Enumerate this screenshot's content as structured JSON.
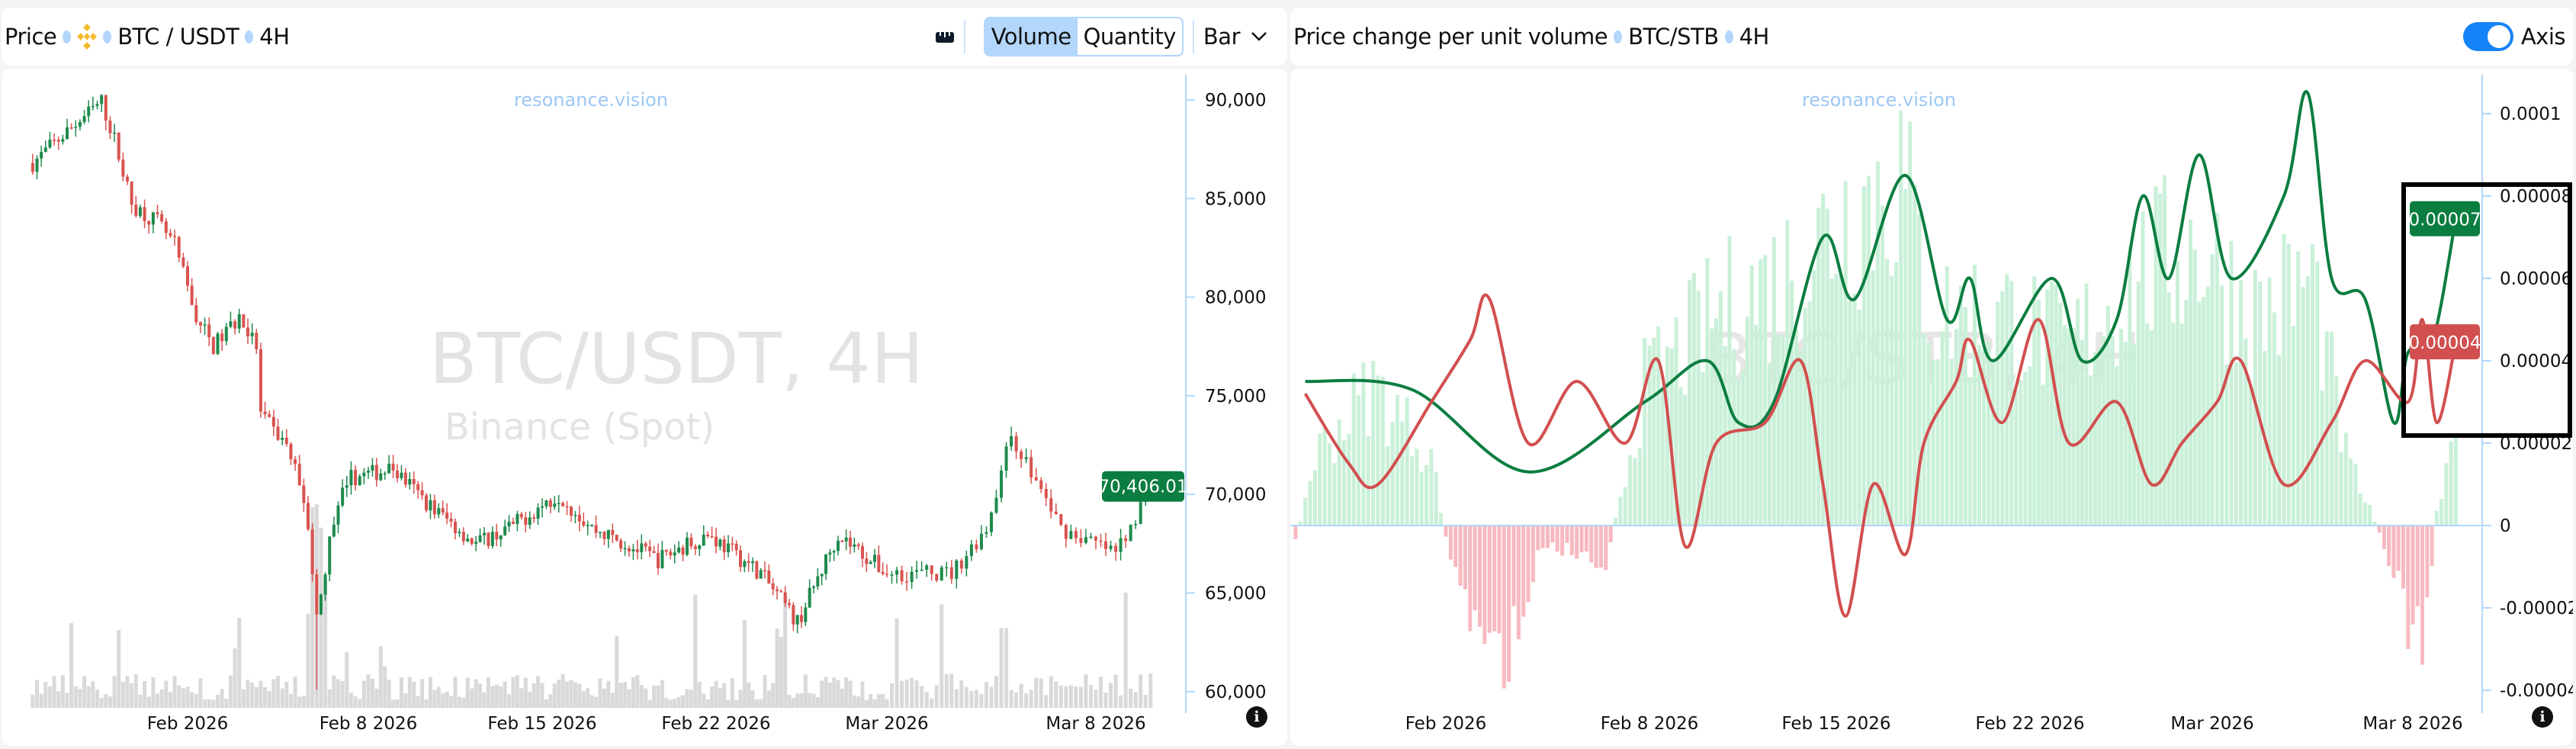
{
  "left": {
    "header": {
      "title": "Price",
      "exchange_icon": "binance-logo-icon",
      "pair": "BTC / USDT",
      "interval": "4H",
      "ruler_icon": "ruler-icon",
      "volume": "Volume",
      "quantity": "Quantity",
      "volume_selected": true,
      "chart_type": "Bar"
    },
    "watermark": {
      "site": "resonance.vision",
      "main": "BTC/USDT, 4H",
      "sub": "Binance (Spot)"
    },
    "chart_data": {
      "type": "candlestick",
      "y_ticks": [
        "90,000",
        "85,000",
        "80,000",
        "75,000",
        "70,000",
        "65,000",
        "60,000"
      ],
      "y_tick_values": [
        90000,
        85000,
        80000,
        75000,
        70000,
        65000,
        60000
      ],
      "x_ticks": [
        {
          "date": "2026-02-01",
          "label": "Feb 2026"
        },
        {
          "date": "2026-02-08",
          "label": "Feb 8 2026"
        },
        {
          "date": "2026-02-15",
          "label": "Feb 15 2026"
        },
        {
          "date": "2026-02-22",
          "label": "Feb 22 2026"
        },
        {
          "date": "2026-03-01",
          "label": "Mar 2026"
        },
        {
          "date": "2026-03-08",
          "label": "Mar 8 2026"
        }
      ],
      "approx_close_path": [
        [
          "2026-01-26T00:00",
          86800
        ],
        [
          "2026-01-27T08:00",
          88400
        ],
        [
          "2026-01-28T16:00",
          89900
        ],
        [
          "2026-01-29T04:00",
          88000
        ],
        [
          "2026-01-29T20:00",
          84700
        ],
        [
          "2026-01-30T20:00",
          83800
        ],
        [
          "2026-01-31T12:00",
          82600
        ],
        [
          "2026-02-01T08:00",
          79000
        ],
        [
          "2026-02-02T00:00",
          77500
        ],
        [
          "2026-02-03T00:00",
          79000
        ],
        [
          "2026-02-03T16:00",
          77500
        ],
        [
          "2026-02-03T20:00",
          74000
        ],
        [
          "2026-02-04T20:00",
          72500
        ],
        [
          "2026-02-05T12:00",
          70000
        ],
        [
          "2026-02-06T00:00",
          63500
        ],
        [
          "2026-02-06T12:00",
          67500
        ],
        [
          "2026-02-07T04:00",
          70800
        ],
        [
          "2026-02-09T00:00",
          71300
        ],
        [
          "2026-02-10T08:00",
          69600
        ],
        [
          "2026-02-12T08:00",
          67500
        ],
        [
          "2026-02-13T16:00",
          68300
        ],
        [
          "2026-02-15T16:00",
          70000
        ],
        [
          "2026-02-17T00:00",
          68300
        ],
        [
          "2026-02-19T16:00",
          66700
        ],
        [
          "2026-02-21T16:00",
          68000
        ],
        [
          "2026-02-23T20:00",
          66000
        ],
        [
          "2026-02-25T08:00",
          63500
        ],
        [
          "2026-02-27T00:00",
          68000
        ],
        [
          "2026-03-01T00:00",
          66000
        ],
        [
          "2026-03-03T04:00",
          66000
        ],
        [
          "2026-03-04T08:00",
          68300
        ],
        [
          "2026-03-05T04:00",
          73000
        ],
        [
          "2026-03-06T20:00",
          68300
        ],
        [
          "2026-03-08T16:00",
          67000
        ],
        [
          "2026-03-09T20:00",
          70406.01
        ]
      ],
      "low_spike": {
        "date": "2026-02-06T00:00",
        "price": 60100
      },
      "last_price": "70,406.01",
      "up_color": "#1e8a4c",
      "down_color": "#d9534f",
      "volume_color": "#d9d9d9",
      "last_price_color": "#0b7d40"
    }
  },
  "right": {
    "header": {
      "title": "Price change per unit volume",
      "pair": "BTC/STB",
      "interval": "4H",
      "axis_label": "Axis",
      "axis_on": true
    },
    "watermark": {
      "site": "resonance.vision",
      "main": "BTC/STB, 4H"
    },
    "chart_data": {
      "type": "line+histogram",
      "y_ticks": [
        "0.0001",
        "0.00008",
        "0.00006",
        "0.00004",
        "0.00002",
        "0",
        "-0.00002",
        "-0.00004"
      ],
      "y_tick_values": [
        0.0001,
        8e-05,
        6e-05,
        4e-05,
        2e-05,
        0,
        -2e-05,
        -4e-05
      ],
      "x_ticks": [
        {
          "date": "2026-02-01",
          "label": "Feb 2026"
        },
        {
          "date": "2026-02-08",
          "label": "Feb 8 2026"
        },
        {
          "date": "2026-02-15",
          "label": "Feb 15 2026"
        },
        {
          "date": "2026-02-22",
          "label": "Feb 22 2026"
        },
        {
          "date": "2026-03-01",
          "label": "Mar 2026"
        },
        {
          "date": "2026-03-08",
          "label": "Mar 8 2026"
        }
      ],
      "series": [
        {
          "color": "#0b7d40",
          "last_label": "0.00007",
          "points": [
            [
              "2026-01-27T04:00",
              3.5e-05
            ],
            [
              "2026-01-30T20:00",
              3.3e-05
            ],
            [
              "2026-02-03T20:00",
              1.3e-05
            ],
            [
              "2026-02-07T20:00",
              3e-05
            ],
            [
              "2026-02-10T04:00",
              4e-05
            ],
            [
              "2026-02-11T08:00",
              2.5e-05
            ],
            [
              "2026-02-12T16:00",
              3e-05
            ],
            [
              "2026-02-14T12:00",
              7e-05
            ],
            [
              "2026-02-15T16:00",
              5.5e-05
            ],
            [
              "2026-02-17T12:00",
              8.5e-05
            ],
            [
              "2026-02-19T00:00",
              5e-05
            ],
            [
              "2026-02-19T20:00",
              6e-05
            ],
            [
              "2026-02-20T16:00",
              4e-05
            ],
            [
              "2026-02-22T20:00",
              6e-05
            ],
            [
              "2026-02-24T00:00",
              4e-05
            ],
            [
              "2026-02-25T08:00",
              5e-05
            ],
            [
              "2026-02-26T08:00",
              8e-05
            ],
            [
              "2026-02-27T08:00",
              6e-05
            ],
            [
              "2026-02-28T12:00",
              9e-05
            ],
            [
              "2026-03-01T16:00",
              6e-05
            ],
            [
              "2026-03-03T12:00",
              8e-05
            ],
            [
              "2026-03-04T08:00",
              0.000105
            ],
            [
              "2026-03-05T04:00",
              6e-05
            ],
            [
              "2026-03-06T08:00",
              5.5e-05
            ],
            [
              "2026-03-07T08:00",
              2.5e-05
            ],
            [
              "2026-03-07T20:00",
              4.2e-05
            ],
            [
              "2026-03-08T16:00",
              4.4e-05
            ],
            [
              "2026-03-09T12:00",
              7.45e-05
            ]
          ]
        },
        {
          "color": "#d24f4f",
          "last_label": "0.00004",
          "points": [
            [
              "2026-01-27T04:00",
              3.2e-05
            ],
            [
              "2026-01-28T16:00",
              1.5e-05
            ],
            [
              "2026-01-29T16:00",
              1e-05
            ],
            [
              "2026-01-31T12:00",
              3e-05
            ],
            [
              "2026-02-01T20:00",
              4.5e-05
            ],
            [
              "2026-02-02T12:00",
              5.5e-05
            ],
            [
              "2026-02-03T20:00",
              2e-05
            ],
            [
              "2026-02-05T12:00",
              3.5e-05
            ],
            [
              "2026-02-07T04:00",
              2e-05
            ],
            [
              "2026-02-08T08:00",
              4e-05
            ],
            [
              "2026-02-09T08:00",
              -5e-06
            ],
            [
              "2026-02-10T12:00",
              2e-05
            ],
            [
              "2026-02-12T08:00",
              2.5e-05
            ],
            [
              "2026-02-13T16:00",
              4e-05
            ],
            [
              "2026-02-14T12:00",
              1e-05
            ],
            [
              "2026-02-15T08:00",
              -2.2e-05
            ],
            [
              "2026-02-16T08:00",
              1e-05
            ],
            [
              "2026-02-17T12:00",
              -7e-06
            ],
            [
              "2026-02-18T04:00",
              2e-05
            ],
            [
              "2026-02-19T08:00",
              3.5e-05
            ],
            [
              "2026-02-19T20:00",
              4.5e-05
            ],
            [
              "2026-02-21T00:00",
              2.5e-05
            ],
            [
              "2026-02-22T08:00",
              5e-05
            ],
            [
              "2026-02-23T12:00",
              2e-05
            ],
            [
              "2026-02-25T08:00",
              3e-05
            ],
            [
              "2026-02-26T16:00",
              1e-05
            ],
            [
              "2026-02-27T20:00",
              2e-05
            ],
            [
              "2026-03-01T04:00",
              3e-05
            ],
            [
              "2026-03-02T00:00",
              4e-05
            ],
            [
              "2026-03-03T12:00",
              1e-05
            ],
            [
              "2026-03-05T04:00",
              2.5e-05
            ],
            [
              "2026-03-06T08:00",
              4e-05
            ],
            [
              "2026-03-07T20:00",
              3e-05
            ],
            [
              "2026-03-08T08:00",
              5e-05
            ],
            [
              "2026-03-08T20:00",
              2.5e-05
            ],
            [
              "2026-03-09T12:00",
              4.46e-05
            ]
          ]
        }
      ],
      "histogram_approx": [
        [
          "2026-01-26T20:00",
          -5e-06
        ],
        [
          "2026-01-27T12:00",
          2e-05
        ],
        [
          "2026-01-29T12:00",
          4e-05
        ],
        [
          "2026-01-31T12:00",
          2e-05
        ],
        [
          "2026-02-01T04:00",
          -1e-05
        ],
        [
          "2026-02-02T12:00",
          -4e-05
        ],
        [
          "2026-02-03T12:00",
          -3e-05
        ],
        [
          "2026-02-04T08:00",
          -5e-06
        ],
        [
          "2026-02-06T12:00",
          -1e-05
        ],
        [
          "2026-02-07T20:00",
          4e-05
        ],
        [
          "2026-02-10T12:00",
          6e-05
        ],
        [
          "2026-02-13T00:00",
          7e-05
        ],
        [
          "2026-02-15T12:00",
          9e-05
        ],
        [
          "2026-02-17T08:00",
          0.0001
        ],
        [
          "2026-02-18T12:00",
          6e-05
        ],
        [
          "2026-02-21T00:00",
          6e-05
        ],
        [
          "2026-02-23T12:00",
          5e-05
        ],
        [
          "2026-02-26T00:00",
          7e-05
        ],
        [
          "2026-02-28T12:00",
          8e-05
        ],
        [
          "2026-03-02T12:00",
          6e-05
        ],
        [
          "2026-03-04T12:00",
          7e-05
        ],
        [
          "2026-03-05T16:00",
          2e-05
        ],
        [
          "2026-03-07T00:00",
          -5e-06
        ],
        [
          "2026-03-08T08:00",
          -4e-05
        ],
        [
          "2026-03-08T20:00",
          5e-06
        ],
        [
          "2026-03-09T12:00",
          3e-05
        ]
      ],
      "hist_pos_color": "#c9f0d8",
      "hist_neg_color": "#f7b9c0"
    }
  }
}
